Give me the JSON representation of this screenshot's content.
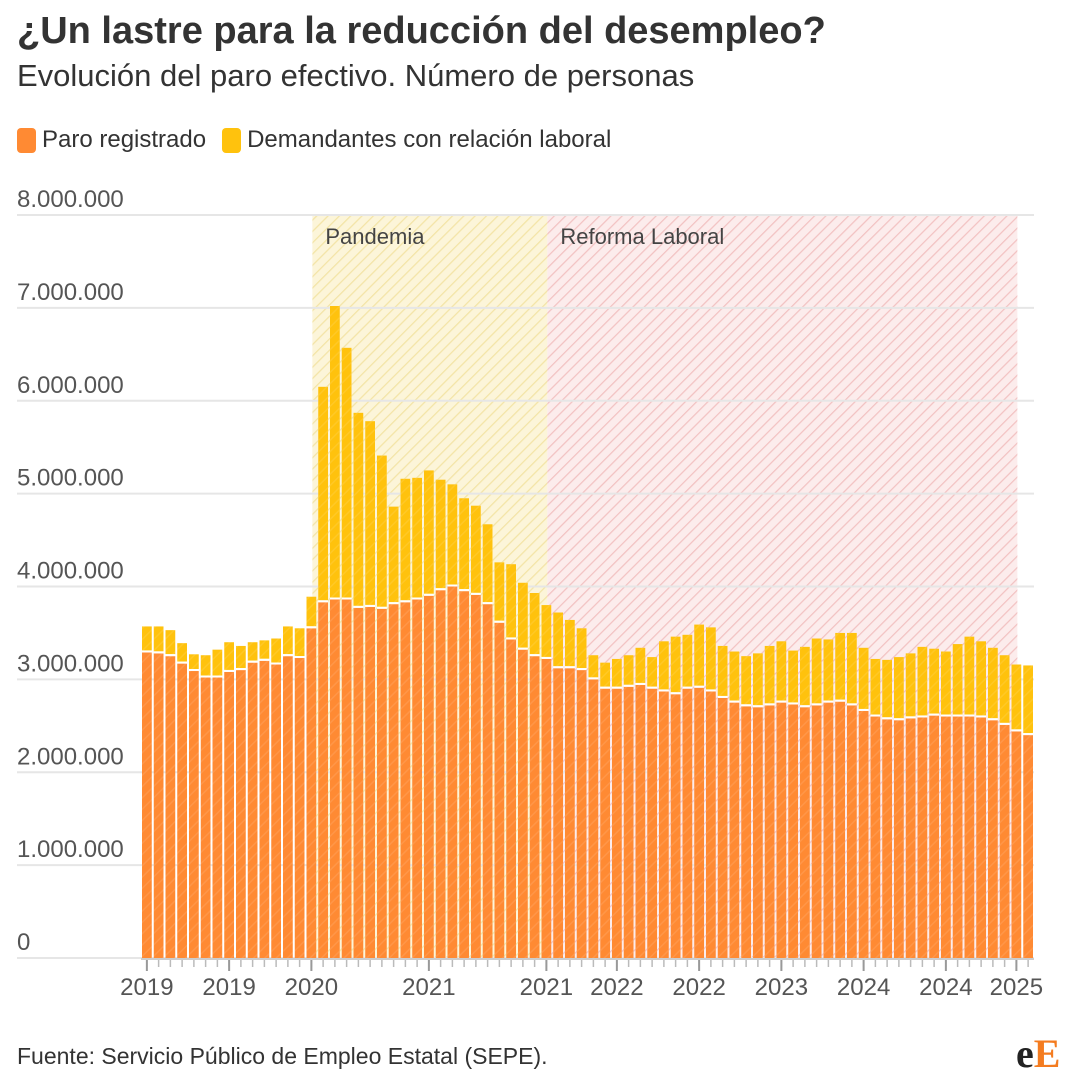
{
  "header": {
    "title": "¿Un lastre para la reducción del desempleo?",
    "subtitle": "Evolución del paro efectivo. Número de personas"
  },
  "colors": {
    "paro": "#ff8a33",
    "demandantes": "#ffc20d",
    "pandemia_shade": "#fbf0c4",
    "reforma_shade": "#f6d0d0"
  },
  "footer": {
    "source": "Fuente: Servicio Público de Empleo Estatal (SEPE).",
    "logo_e": "e",
    "logo_E": "E"
  },
  "chart_data": {
    "type": "bar",
    "stacked": true,
    "title": "¿Un lastre para la reducción del desempleo?",
    "subtitle": "Evolución del paro efectivo. Número de personas",
    "ylim": [
      0,
      8000000
    ],
    "yticks": [
      0,
      1000000,
      2000000,
      3000000,
      4000000,
      5000000,
      6000000,
      7000000,
      8000000
    ],
    "ytick_labels": [
      "0",
      "1.000.000",
      "2.000.000",
      "3.000.000",
      "4.000.000",
      "5.000.000",
      "6.000.000",
      "7.000.000",
      "8.000.000"
    ],
    "grid": true,
    "legend_position": "top-left",
    "x_tick_labels": [
      {
        "index": 0,
        "label": "2019"
      },
      {
        "index": 7,
        "label": "2019"
      },
      {
        "index": 14,
        "label": "2020"
      },
      {
        "index": 24,
        "label": "2021"
      },
      {
        "index": 34,
        "label": "2021"
      },
      {
        "index": 40,
        "label": "2022"
      },
      {
        "index": 47,
        "label": "2022"
      },
      {
        "index": 54,
        "label": "2023"
      },
      {
        "index": 61,
        "label": "2024"
      },
      {
        "index": 68,
        "label": "2024"
      },
      {
        "index": 74,
        "label": "2025"
      }
    ],
    "annotations": [
      {
        "label": "Pandemia",
        "start_index": 14.5,
        "end_index": 34.5
      },
      {
        "label": "Reforma Laboral",
        "start_index": 34.5,
        "end_index": 74.5
      }
    ],
    "series": [
      {
        "name": "Paro registrado",
        "color": "#ff8a33",
        "values": [
          3290000,
          3280000,
          3250000,
          3170000,
          3090000,
          3020000,
          3020000,
          3080000,
          3100000,
          3180000,
          3200000,
          3160000,
          3250000,
          3230000,
          3550000,
          3830000,
          3860000,
          3860000,
          3770000,
          3780000,
          3760000,
          3810000,
          3830000,
          3860000,
          3900000,
          3960000,
          4000000,
          3950000,
          3910000,
          3810000,
          3610000,
          3430000,
          3320000,
          3250000,
          3220000,
          3120000,
          3120000,
          3100000,
          3000000,
          2900000,
          2900000,
          2920000,
          2940000,
          2900000,
          2870000,
          2840000,
          2900000,
          2910000,
          2870000,
          2800000,
          2750000,
          2710000,
          2700000,
          2720000,
          2750000,
          2730000,
          2700000,
          2720000,
          2750000,
          2760000,
          2720000,
          2660000,
          2600000,
          2570000,
          2560000,
          2580000,
          2590000,
          2610000,
          2600000,
          2600000,
          2600000,
          2590000,
          2560000,
          2510000,
          2440000,
          2400000
        ]
      },
      {
        "name": "Demandantes con relación laboral",
        "color": "#ffc20d",
        "values": [
          280000,
          290000,
          280000,
          220000,
          180000,
          240000,
          300000,
          320000,
          260000,
          220000,
          220000,
          280000,
          320000,
          320000,
          340000,
          2320000,
          3160000,
          2710000,
          2100000,
          2000000,
          1650000,
          1050000,
          1330000,
          1310000,
          1350000,
          1190000,
          1100000,
          1000000,
          960000,
          860000,
          650000,
          810000,
          720000,
          680000,
          580000,
          600000,
          520000,
          450000,
          260000,
          280000,
          320000,
          340000,
          400000,
          340000,
          540000,
          620000,
          580000,
          680000,
          690000,
          560000,
          550000,
          540000,
          580000,
          640000,
          660000,
          580000,
          650000,
          720000,
          680000,
          740000,
          780000,
          680000,
          620000,
          640000,
          680000,
          700000,
          760000,
          720000,
          700000,
          780000,
          860000,
          820000,
          780000,
          750000,
          720000,
          750000
        ]
      }
    ]
  }
}
